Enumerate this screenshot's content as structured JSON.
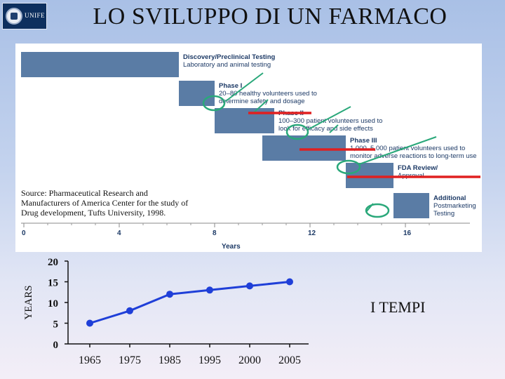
{
  "header": {
    "logo_text": "UNIFE",
    "title": "LO SVILUPPO DI UN FARMACO"
  },
  "timeline": {
    "x_ticks": [
      "0",
      "4",
      "8",
      "12",
      "16"
    ],
    "x_label": "Years",
    "source_note": "Source: Pharmaceutical Research and Manufacturers of America Center for the study of Drug development, Tufts University, 1998.",
    "bar_color": "#5a7ca5",
    "marker_color_red": "#e02020",
    "marker_color_green": "#2aa87a",
    "phases": [
      {
        "start": 0,
        "end": 6.5,
        "title": "Discovery/Preclinical Testing",
        "desc": [
          "Laboratory and animal testing"
        ]
      },
      {
        "start": 6.5,
        "end": 8,
        "title": "Phase I",
        "desc": [
          "20–80 healthy volunteers used to",
          "determine safety and dosage"
        ]
      },
      {
        "start": 8,
        "end": 10.5,
        "title": "Phase II",
        "desc": [
          "100–300 patient volunteers used to",
          "look for efficacy and side effects"
        ]
      },
      {
        "start": 10,
        "end": 13.5,
        "title": "Phase III",
        "desc": [
          "1,000–5,000 patient volunteers used to",
          "monitor adverse reactions to long-term use"
        ]
      },
      {
        "start": 13.5,
        "end": 15.5,
        "title": "FDA Review/",
        "desc": [
          "Approval"
        ]
      },
      {
        "start": 15.5,
        "end": 17,
        "title": "Additional",
        "desc": [
          "Postmarketing",
          "Testing"
        ]
      }
    ]
  },
  "chart_data": {
    "type": "line",
    "title": "",
    "xlabel": "",
    "ylabel": "YEARS",
    "categories": [
      "1965",
      "1975",
      "1985",
      "1995",
      "2000",
      "2005"
    ],
    "series": [
      {
        "values": [
          5,
          8,
          12,
          13,
          14,
          15
        ]
      }
    ],
    "ylim": [
      0,
      20
    ],
    "yticks": [
      "0",
      "5",
      "10",
      "15",
      "20"
    ],
    "line_color": "#1f3fd8",
    "grid": false
  },
  "annotation": {
    "right_label": "I TEMPI"
  }
}
